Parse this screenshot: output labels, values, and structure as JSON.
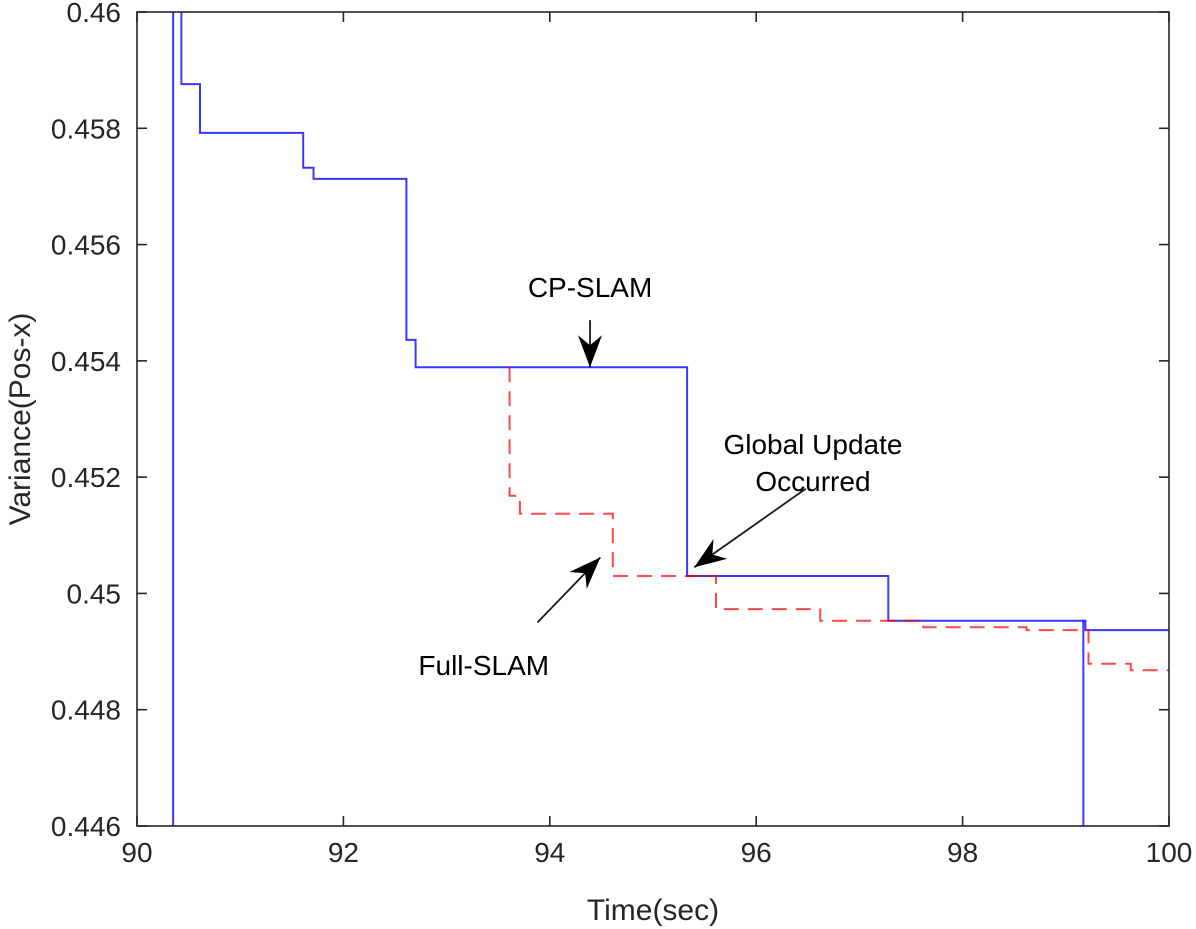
{
  "chart_data": {
    "type": "line",
    "title": "",
    "xlabel": "Time(sec)",
    "ylabel": "Variance(Pos-x)",
    "xlim": [
      90,
      100
    ],
    "ylim": [
      0.446,
      0.46
    ],
    "xticks": [
      90,
      92,
      94,
      96,
      98,
      100
    ],
    "xtick_labels": [
      "90",
      "92",
      "94",
      "96",
      "98",
      "100"
    ],
    "yticks": [
      0.446,
      0.448,
      0.45,
      0.452,
      0.454,
      0.456,
      0.458,
      0.46
    ],
    "ytick_labels": [
      "0.446",
      "0.448",
      "0.45",
      "0.452",
      "0.454",
      "0.456",
      "0.458",
      "0.46"
    ],
    "grid": false,
    "legend": null,
    "series": [
      {
        "name": "CP-SLAM",
        "color": "#0000ff",
        "style": "solid",
        "step": true,
        "spikes": [
          {
            "x": 90.35,
            "from": 0.46,
            "to": 0.446
          },
          {
            "x": 99.17,
            "from": 0.44953,
            "to": 0.446
          }
        ],
        "x": [
          90.43,
          90.43,
          90.61,
          91.61,
          91.71,
          92.61,
          92.7,
          95.33,
          97.28,
          99.19,
          100.0
        ],
        "y": [
          0.46,
          0.45876,
          0.45792,
          0.45732,
          0.45713,
          0.45436,
          0.45389,
          0.4503,
          0.44953,
          0.44937,
          0.44937
        ]
      },
      {
        "name": "Full-SLAM",
        "color": "#ff0000",
        "style": "dashed",
        "step": true,
        "x": [
          93.61,
          93.61,
          93.71,
          94.61,
          95.61,
          96.62,
          97.62,
          98.62,
          99.22,
          99.63,
          100.0
        ],
        "y": [
          0.45389,
          0.45168,
          0.45137,
          0.4503,
          0.44973,
          0.44953,
          0.44942,
          0.44937,
          0.44879,
          0.44868,
          0.44868
        ]
      }
    ],
    "annotations": [
      {
        "id": "cp-slam",
        "lines": [
          "CP-SLAM"
        ],
        "text_x": 94.39,
        "text_y": 0.4551,
        "arrow_from": [
          94.39,
          0.4547
        ],
        "arrow_to": [
          94.39,
          0.45389
        ]
      },
      {
        "id": "global-update",
        "lines": [
          "Global Update",
          "Occurred"
        ],
        "text_x": 96.55,
        "text_y": 0.4524,
        "arrow_from": [
          96.48,
          0.4518
        ],
        "arrow_to": [
          95.4,
          0.45045
        ]
      },
      {
        "id": "full-slam",
        "lines": [
          "Full-SLAM"
        ],
        "text_x": 93.36,
        "text_y": 0.4486,
        "arrow_from": [
          93.88,
          0.4495
        ],
        "arrow_to": [
          94.49,
          0.45062
        ]
      }
    ]
  }
}
